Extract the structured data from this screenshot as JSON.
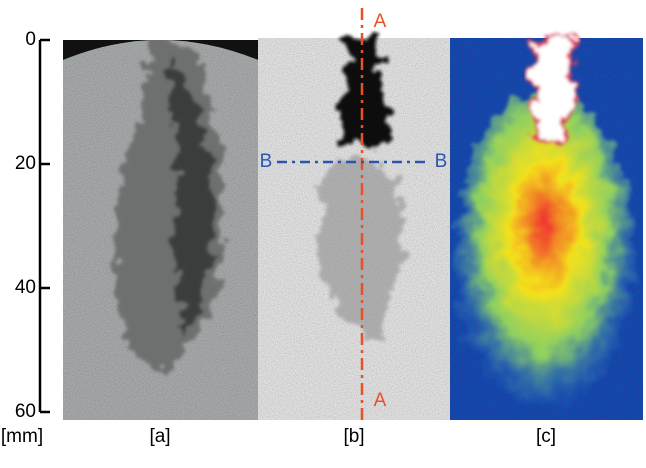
{
  "scale": {
    "unit": "[mm]",
    "lim": [
      0,
      60
    ],
    "ticks": [
      0,
      20,
      40,
      60
    ]
  },
  "panels": [
    {
      "label": "[a]"
    },
    {
      "label": "[b]"
    },
    {
      "label": "[c]"
    }
  ],
  "section_a": {
    "top_label": "A",
    "bottom_label": "A"
  },
  "section_b": {
    "left_label": "B",
    "right_label": "B"
  }
}
